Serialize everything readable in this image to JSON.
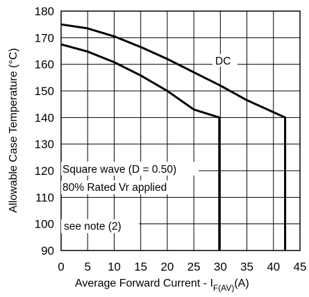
{
  "chart_data": {
    "type": "line",
    "xlabel_main": "Average Forward Current - I",
    "xlabel_sub": "F(AV)",
    "xlabel_unit": "(A)",
    "ylabel": "Allowable Case Temperature  (°C)",
    "xlim": [
      0,
      45
    ],
    "ylim": [
      90,
      180
    ],
    "x_ticks": [
      0,
      5,
      10,
      15,
      20,
      25,
      30,
      35,
      40,
      45
    ],
    "y_ticks": [
      90,
      100,
      110,
      120,
      130,
      140,
      150,
      160,
      170,
      180
    ],
    "grid": true,
    "series": [
      {
        "name": "DC",
        "x": [
          0,
          5,
          10,
          15,
          20,
          25,
          30,
          35,
          40,
          42.2,
          42.2
        ],
        "y": [
          175,
          173.5,
          170.5,
          166.5,
          162,
          157,
          152,
          146.5,
          142,
          140,
          90
        ]
      },
      {
        "x": [
          0,
          5,
          10,
          15,
          20,
          25,
          29.8,
          29.8
        ],
        "y": [
          167.5,
          164.8,
          160.8,
          155.8,
          150,
          143,
          140,
          90
        ]
      }
    ],
    "annotations": {
      "dc_label": "DC",
      "square_wave": "Square wave (D = 0.50)",
      "rated": "80% Rated Vr  applied",
      "note": "see note (2)"
    }
  }
}
